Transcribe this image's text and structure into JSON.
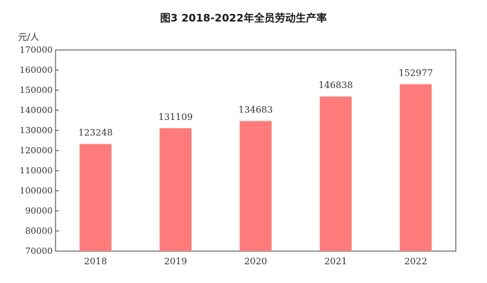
{
  "chart_data": {
    "type": "bar",
    "title": "图3 2018-2022年全员劳动生产率",
    "ylabel": "元/人",
    "xlabel": "",
    "categories": [
      "2018",
      "2019",
      "2020",
      "2021",
      "2022"
    ],
    "values": [
      123248,
      131109,
      134683,
      146838,
      152977
    ],
    "data_labels": [
      "123248",
      "131109",
      "134683",
      "146838",
      "152977"
    ],
    "ylim": [
      70000,
      170000
    ],
    "yticks": [
      70000,
      80000,
      90000,
      100000,
      110000,
      120000,
      130000,
      140000,
      150000,
      160000,
      170000
    ],
    "ytick_labels": [
      "70000",
      "80000",
      "90000",
      "100000",
      "110000",
      "120000",
      "130000",
      "140000",
      "150000",
      "160000",
      "170000"
    ],
    "bar_color": "#fe7b7b",
    "grid": false,
    "legend": "none"
  }
}
